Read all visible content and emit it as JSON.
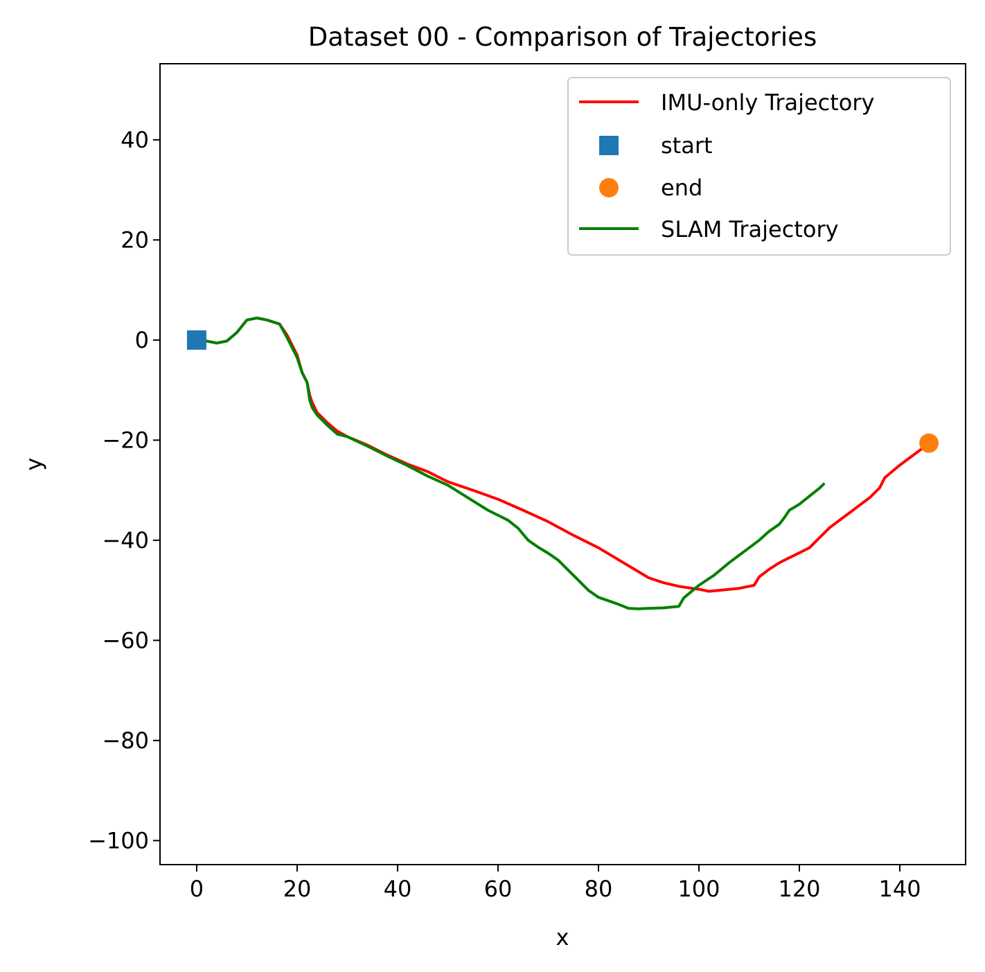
{
  "chart_data": {
    "type": "line",
    "title": "Dataset 00 - Comparison of Trajectories",
    "xlabel": "x",
    "ylabel": "y",
    "xlim": [
      -7.3,
      153.1
    ],
    "ylim": [
      -104.8,
      55.2
    ],
    "x_ticks": [
      0,
      20,
      40,
      60,
      80,
      100,
      120,
      140
    ],
    "y_ticks": [
      40,
      20,
      0,
      -20,
      -40,
      -60,
      -80,
      -100
    ],
    "x_tick_labels": [
      "0",
      "20",
      "40",
      "60",
      "80",
      "100",
      "120",
      "140"
    ],
    "y_tick_labels": [
      "40",
      "20",
      "0",
      "−20",
      "−40",
      "−60",
      "−80",
      "−100"
    ],
    "grid": false,
    "legend_position": "upper right",
    "legend": {
      "imu": "IMU-only Trajectory",
      "start": "start",
      "end": "end",
      "slam": "SLAM Trajectory"
    },
    "colors": {
      "imu": "#ff0000",
      "slam": "#008000",
      "start": "#1f77b4",
      "end": "#ff7f0e"
    },
    "series": [
      {
        "name": "IMU-only Trajectory",
        "style": "line",
        "x": [
          0,
          2,
          4,
          6,
          8,
          10,
          12,
          14,
          16.5,
          18,
          20,
          21,
          22,
          22.5,
          23,
          24,
          26,
          28,
          30,
          34,
          38,
          42,
          46,
          50,
          55,
          60,
          65,
          70,
          75,
          80,
          85,
          90,
          93,
          96,
          100,
          102,
          104,
          108,
          111,
          112,
          114,
          116,
          118,
          120,
          122,
          124,
          126,
          128,
          130,
          132,
          134,
          136,
          137,
          140,
          142,
          144,
          146
        ],
        "y": [
          0,
          -0.2,
          -0.6,
          -0.2,
          1.5,
          4,
          4.4,
          4,
          3.2,
          1,
          -3,
          -6.5,
          -8.5,
          -11,
          -12.5,
          -14.5,
          -16.5,
          -18.2,
          -19.3,
          -21,
          -23,
          -24.8,
          -26.3,
          -28.3,
          -30,
          -31.8,
          -34,
          -36.3,
          -39,
          -41.5,
          -44.5,
          -47.5,
          -48.5,
          -49.2,
          -49.8,
          -50.2,
          -50,
          -49.6,
          -49,
          -47.3,
          -45.8,
          -44.5,
          -43.5,
          -42.5,
          -41.5,
          -39.5,
          -37.5,
          -36,
          -34.5,
          -33,
          -31.5,
          -29.5,
          -27.5,
          -25,
          -23.5,
          -22,
          -20.6
        ]
      },
      {
        "name": "start",
        "style": "marker-square",
        "x": [
          0
        ],
        "y": [
          0
        ]
      },
      {
        "name": "end",
        "style": "marker-circle",
        "x": [
          145.8
        ],
        "y": [
          -20.6
        ]
      },
      {
        "name": "SLAM Trajectory",
        "style": "line",
        "x": [
          0,
          2,
          4,
          6,
          8,
          10,
          12,
          14,
          16.5,
          18,
          20,
          21,
          22,
          22.5,
          23,
          24,
          26,
          28,
          30,
          34,
          38,
          42,
          46,
          50,
          54,
          58,
          62,
          64,
          66,
          68,
          70,
          72,
          74,
          76,
          78,
          80,
          82,
          84,
          86,
          88,
          90,
          93,
          96,
          97,
          100,
          103,
          106,
          108,
          110,
          112,
          114,
          116,
          117,
          118,
          120,
          122,
          124,
          125
        ],
        "y": [
          0,
          -0.2,
          -0.6,
          -0.2,
          1.5,
          4,
          4.4,
          4,
          3.2,
          0.5,
          -3.5,
          -6.5,
          -8.5,
          -12,
          -13.5,
          -15,
          -17,
          -18.8,
          -19.3,
          -21.2,
          -23.2,
          -25.1,
          -27.2,
          -29,
          -31.5,
          -34,
          -36,
          -37.6,
          -40,
          -41.4,
          -42.6,
          -44,
          -46,
          -48,
          -50,
          -51.4,
          -52.1,
          -52.8,
          -53.6,
          -53.7,
          -53.6,
          -53.5,
          -53.2,
          -51.5,
          -49,
          -47,
          -44.5,
          -43,
          -41.5,
          -40,
          -38.2,
          -36.8,
          -35.5,
          -34,
          -32.8,
          -31.2,
          -29.6,
          -28.6
        ]
      }
    ]
  }
}
